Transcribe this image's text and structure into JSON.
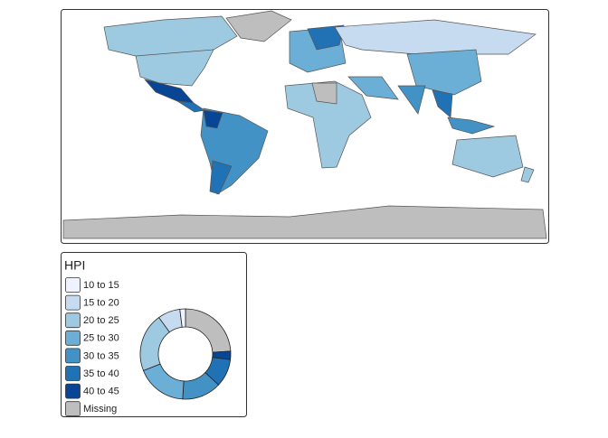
{
  "legend": {
    "title": "HPI",
    "items": [
      {
        "label": "10 to 15",
        "color": "#eff3ff",
        "share": 2
      },
      {
        "label": "15 to 20",
        "color": "#c6dbef",
        "share": 8
      },
      {
        "label": "20 to 25",
        "color": "#9ecae1",
        "share": 21
      },
      {
        "label": "25 to 30",
        "color": "#6baed6",
        "share": 18
      },
      {
        "label": "30 to 35",
        "color": "#4292c6",
        "share": 14
      },
      {
        "label": "35 to 40",
        "color": "#2171b5",
        "share": 10
      },
      {
        "label": "40 to 45",
        "color": "#084594",
        "share": 3
      },
      {
        "label": "Missing",
        "color": "#bebebe",
        "share": 24
      }
    ]
  }
}
